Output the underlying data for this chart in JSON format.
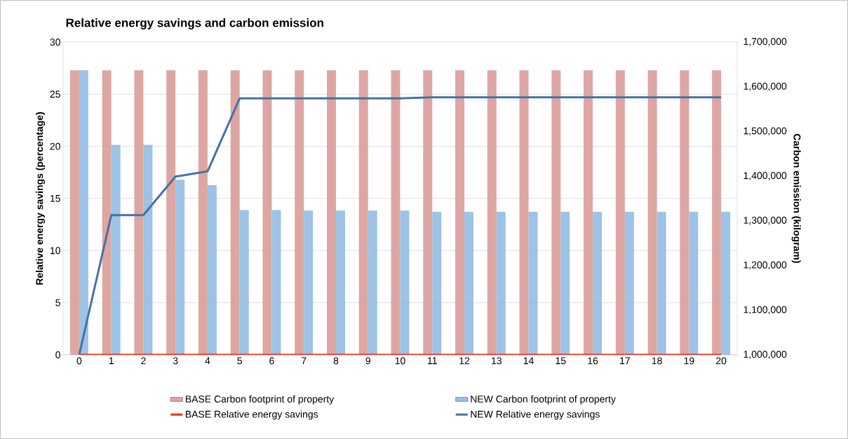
{
  "chart_data": {
    "type": "bar",
    "title": "Relative energy savings and carbon emission",
    "ylabel": "Relative energy savings (percentage)",
    "y2label": "Carbon emission (kilogram)",
    "categories": [
      "0",
      "1",
      "2",
      "3",
      "4",
      "5",
      "6",
      "7",
      "8",
      "9",
      "10",
      "11",
      "12",
      "13",
      "14",
      "15",
      "16",
      "17",
      "18",
      "19",
      "20"
    ],
    "series": [
      {
        "name": "BASE Carbon footprint of property",
        "axis": "y2",
        "color": "#dea6a2",
        "values": [
          1637000,
          1637000,
          1637000,
          1637000,
          1637000,
          1637000,
          1637000,
          1637000,
          1637000,
          1637000,
          1637000,
          1637000,
          1637000,
          1637000,
          1637000,
          1637000,
          1637000,
          1637000,
          1637000,
          1637000,
          1637000
        ]
      },
      {
        "name": "NEW Carbon footprint of property",
        "axis": "y2",
        "color": "#9dc3e6",
        "values": [
          1637000,
          1470000,
          1470000,
          1392000,
          1380000,
          1324000,
          1324000,
          1323000,
          1323000,
          1323000,
          1323000,
          1320000,
          1320000,
          1320000,
          1320000,
          1320000,
          1320000,
          1320000,
          1320000,
          1320000,
          1320000
        ]
      },
      {
        "name": "BASE Relative energy savings",
        "type": "line",
        "color": "#ff2a0a",
        "values": [
          0,
          0,
          0,
          0,
          0,
          0,
          0,
          0,
          0,
          0,
          0,
          0,
          0,
          0,
          0,
          0,
          0,
          0,
          0,
          0,
          0
        ]
      },
      {
        "name": "NEW Relative energy savings",
        "type": "line",
        "color": "#4672a3",
        "values": [
          0,
          13.4,
          13.4,
          17.1,
          17.6,
          24.6,
          24.6,
          24.6,
          24.6,
          24.6,
          24.6,
          24.7,
          24.7,
          24.7,
          24.7,
          24.7,
          24.7,
          24.7,
          24.7,
          24.7,
          24.7
        ]
      }
    ],
    "ylim": [
      0,
      30
    ],
    "yticks": [
      0,
      5,
      10,
      15,
      20,
      25,
      30
    ],
    "y2lim": [
      1000000,
      1700000
    ],
    "y2ticks": [
      {
        "value": 1000000,
        "label": "1,000,000"
      },
      {
        "value": 1100000,
        "label": "1,100,000"
      },
      {
        "value": 1200000,
        "label": "1,200,000"
      },
      {
        "value": 1300000,
        "label": "1,300,000"
      },
      {
        "value": 1400000,
        "label": "1,400,000"
      },
      {
        "value": 1500000,
        "label": "1,500,000"
      },
      {
        "value": 1600000,
        "label": "1,600,000"
      },
      {
        "value": 1700000,
        "label": "1,700,000"
      }
    ],
    "grid": "y",
    "legend": "bottom"
  }
}
